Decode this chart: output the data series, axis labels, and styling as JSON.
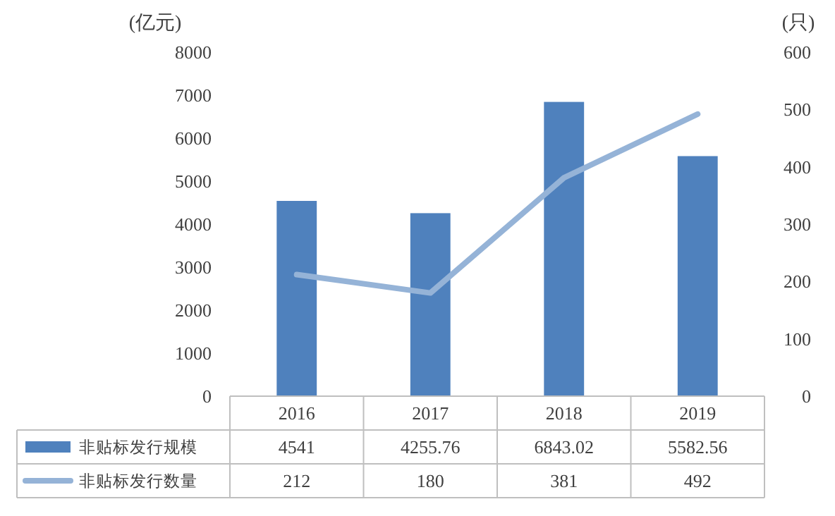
{
  "chart_data": {
    "type": "bar",
    "categories": [
      "2016",
      "2017",
      "2018",
      "2019"
    ],
    "ylabel": "(亿元)",
    "y2label": "(只)",
    "ylim": [
      0,
      8000
    ],
    "yticks": [
      0,
      1000,
      2000,
      3000,
      4000,
      5000,
      6000,
      7000,
      8000
    ],
    "y2lim": [
      0,
      600
    ],
    "y2ticks": [
      0,
      100,
      200,
      300,
      400,
      500,
      600
    ],
    "data_labels": true,
    "legend": "bottom",
    "grid": false,
    "series": [
      {
        "name": "非贴标发行规模",
        "color": "#4f81bd",
        "values": [
          4541,
          4255.76,
          6843.02,
          5582.56
        ]
      },
      {
        "name": "非贴标发行数量",
        "type": "line",
        "axis": "y2",
        "color": "#95b3d7",
        "values": [
          212,
          180,
          381,
          492
        ]
      }
    ]
  }
}
